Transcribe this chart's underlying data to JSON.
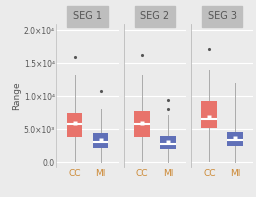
{
  "segments": [
    "SEG 1",
    "SEG 2",
    "SEG 3"
  ],
  "groups": [
    "CC",
    "MI"
  ],
  "colors": {
    "CC": "#E8736B",
    "MI": "#6070B8"
  },
  "background_color": "#EBEBEB",
  "panel_header_color": "#BEBEBE",
  "panel_header_text": "#555555",
  "grid_color": "#FFFFFF",
  "ylabel": "Range",
  "ylim": [
    -800,
    21000
  ],
  "yticks": [
    0,
    5000,
    10000,
    15000,
    20000
  ],
  "ytick_labels": [
    "0.0",
    "5.0×10³",
    "1.0×10⁴",
    "1.5×10⁴",
    "2.0×10⁴"
  ],
  "boxes": {
    "SEG 1": {
      "CC": {
        "q1": 3800,
        "median": 5800,
        "q3": 7500,
        "whislo": 200,
        "whishi": 13200,
        "mean": 6000,
        "fliers": [
          16000
        ]
      },
      "MI": {
        "q1": 2200,
        "median": 3000,
        "q3": 4400,
        "whislo": 100,
        "whishi": 8000,
        "mean": 3400,
        "fliers": [
          10800
        ]
      }
    },
    "SEG 2": {
      "CC": {
        "q1": 3800,
        "median": 5800,
        "q3": 7800,
        "whislo": 200,
        "whishi": 13200,
        "mean": 6000,
        "fliers": [
          16200
        ]
      },
      "MI": {
        "q1": 2000,
        "median": 2800,
        "q3": 4000,
        "whislo": 100,
        "whishi": 7200,
        "mean": 3000,
        "fliers": [
          9500,
          8000
        ]
      }
    },
    "SEG 3": {
      "CC": {
        "q1": 5200,
        "median": 6500,
        "q3": 9200,
        "whislo": 200,
        "whishi": 14000,
        "mean": 6800,
        "fliers": [
          17200
        ]
      },
      "MI": {
        "q1": 2500,
        "median": 3300,
        "q3": 4600,
        "whislo": 100,
        "whishi": 12000,
        "mean": 3600,
        "fliers": []
      }
    }
  },
  "whisker_color": "#AAAAAA",
  "median_color": "#FFFFFF",
  "mean_color": "#FFFFFF",
  "flier_color": "#555555",
  "xlabel_color": "#CC8833",
  "ylabel_color": "#555555"
}
